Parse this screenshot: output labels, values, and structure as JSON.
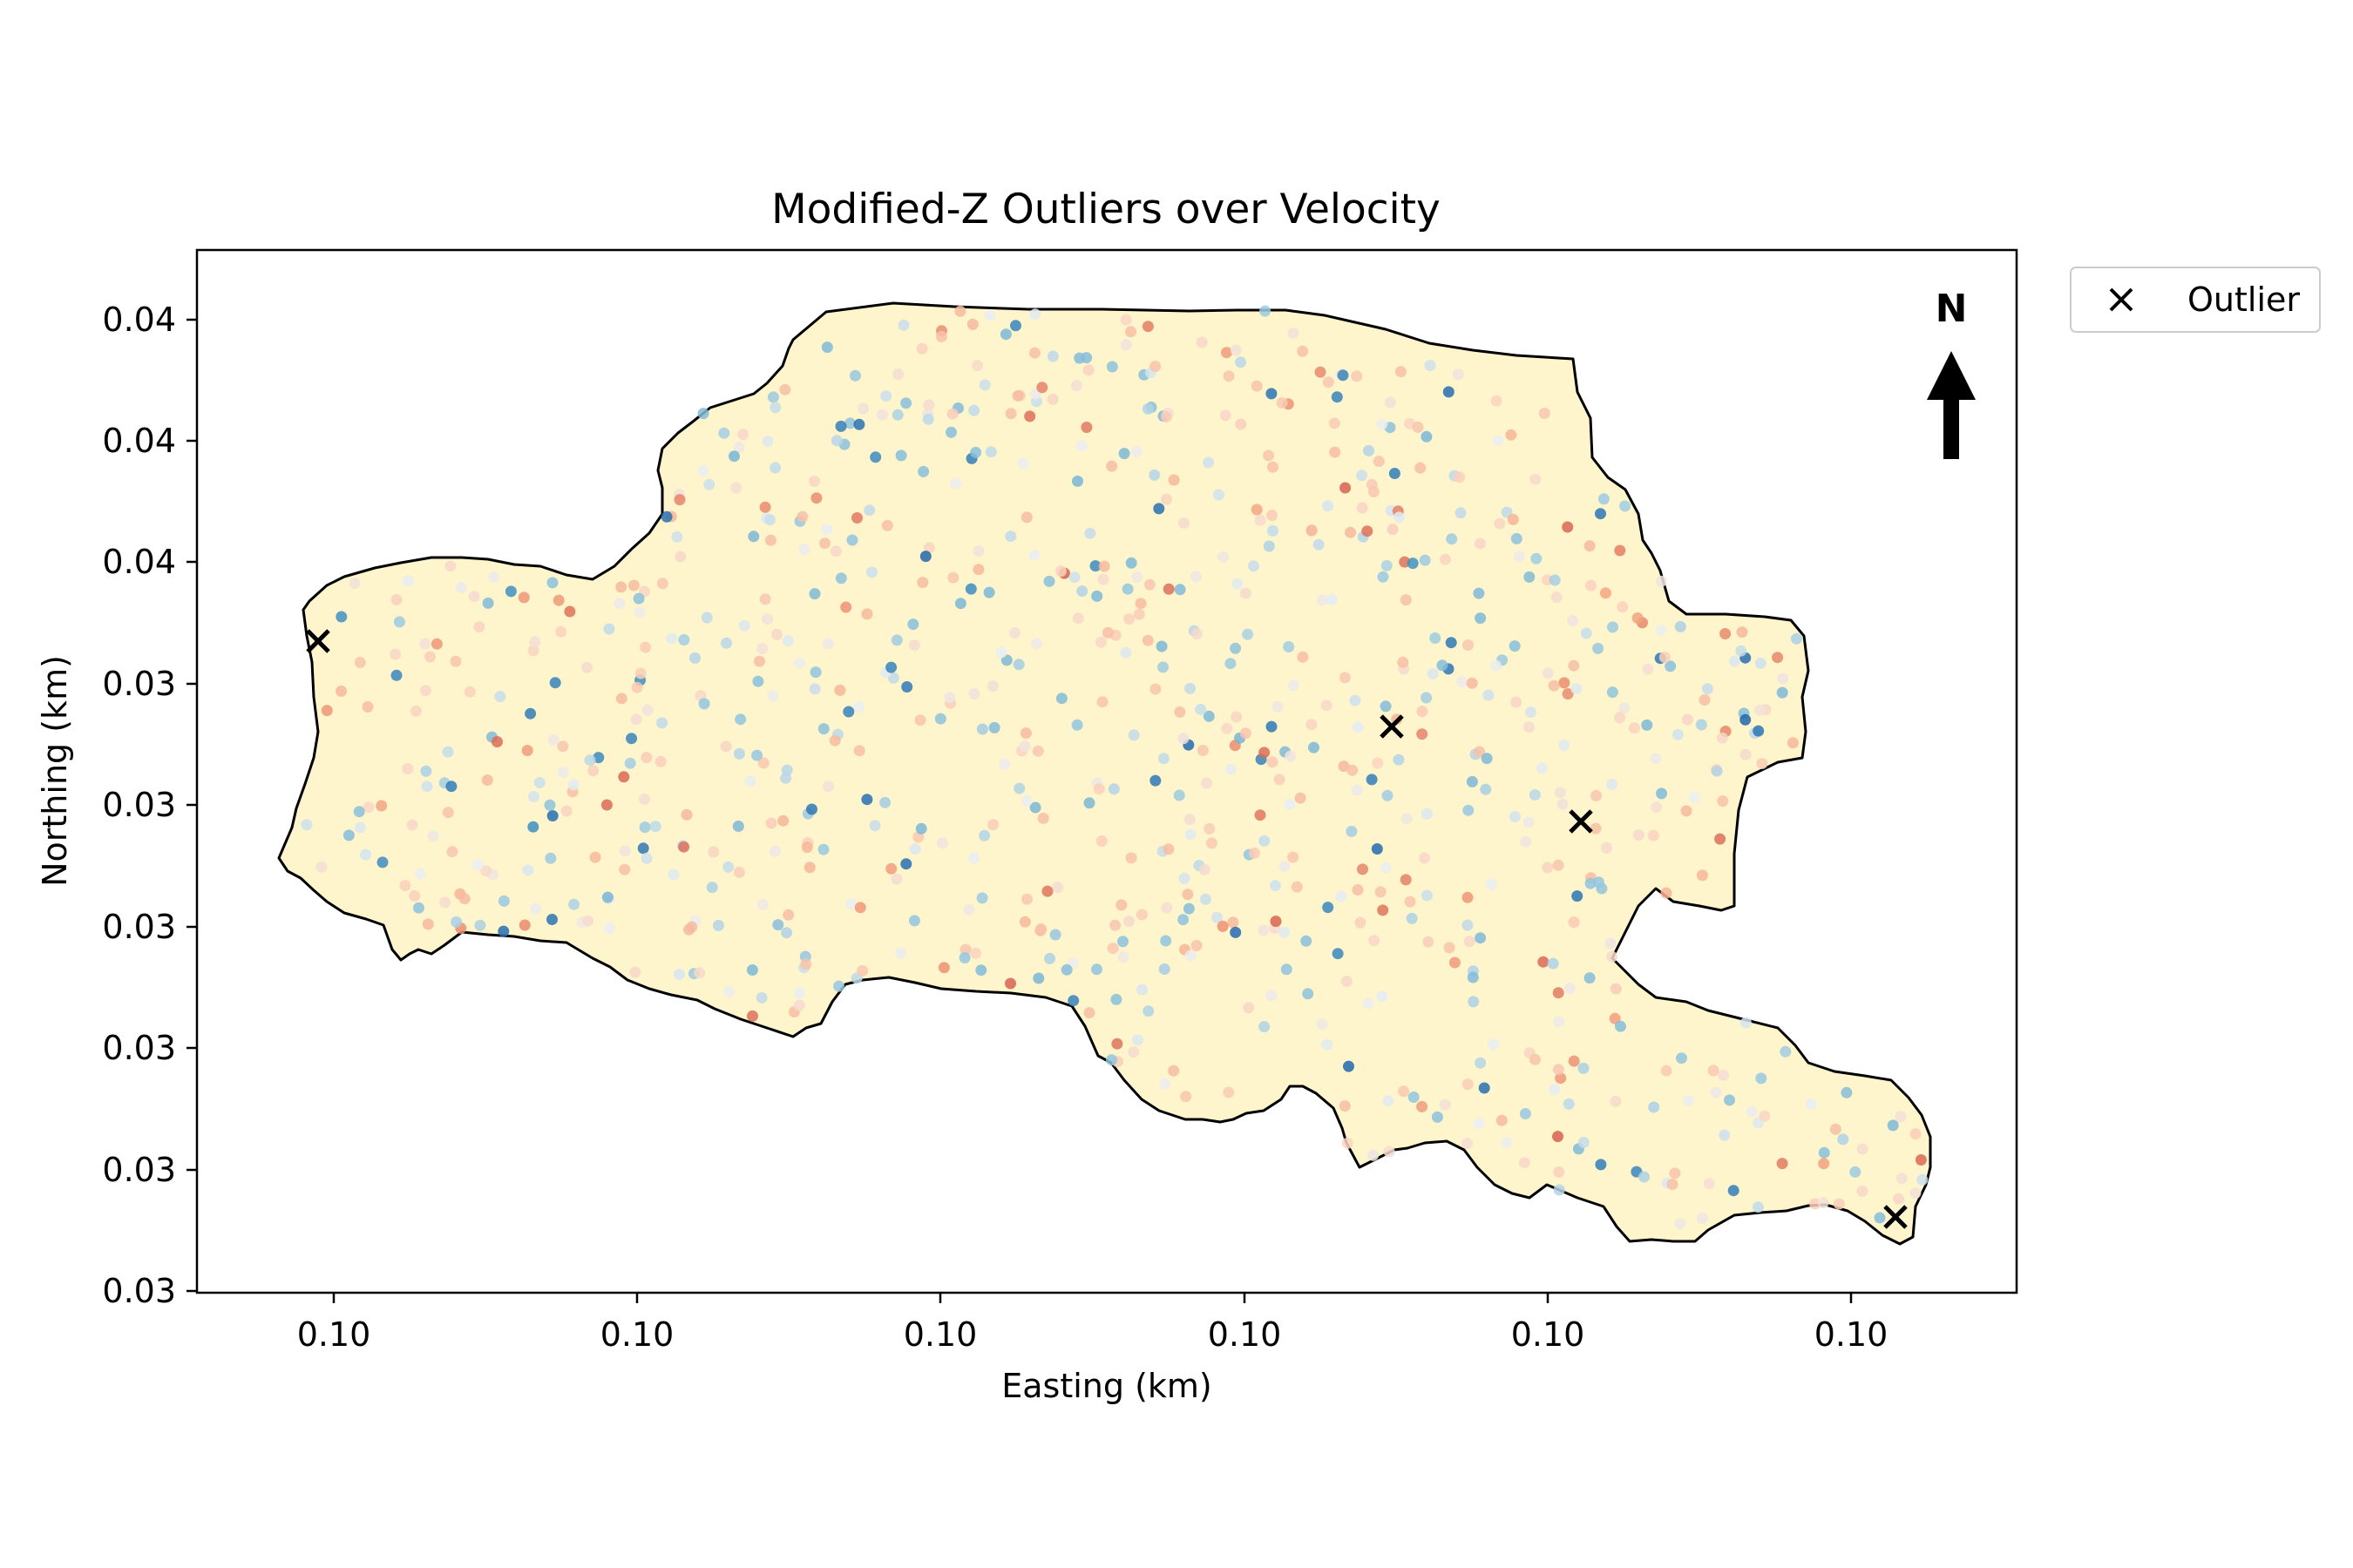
{
  "title": "Modified-Z Outliers over Velocity",
  "xlabel": "Easting (km)",
  "ylabel": "Northing (km)",
  "x_tick_labels": [
    "0.10",
    "0.10",
    "0.10",
    "0.10",
    "0.10",
    "0.10"
  ],
  "y_tick_labels": [
    "0.04",
    "0.04",
    "0.04",
    "0.03",
    "0.03",
    "0.03",
    "0.03",
    "0.03",
    "0.03"
  ],
  "north_arrow_label": "N",
  "legend": {
    "outlier_label": "Outlier",
    "outlier_marker": "x"
  },
  "colors": {
    "basin_fill": "#fef5cc",
    "boundary": "#000000",
    "outlier_marker": "#000000",
    "velocity_colormap": "RdBu_r",
    "low_velocity": "#4393c3",
    "high_velocity": "#d6604d"
  },
  "chart_data": {
    "type": "map",
    "title": "Modified-Z Outliers over Velocity",
    "xlabel": "Easting (km)",
    "ylabel": "Northing (km)",
    "grid": false,
    "legend_position": "outside-top-right",
    "layers": [
      {
        "name": "basin",
        "kind": "polygon"
      },
      {
        "name": "velocity samples",
        "kind": "scatter",
        "colormap": "RdBu_r"
      },
      {
        "name": "Outlier",
        "kind": "scatter",
        "marker": "x",
        "count": 4
      }
    ]
  }
}
